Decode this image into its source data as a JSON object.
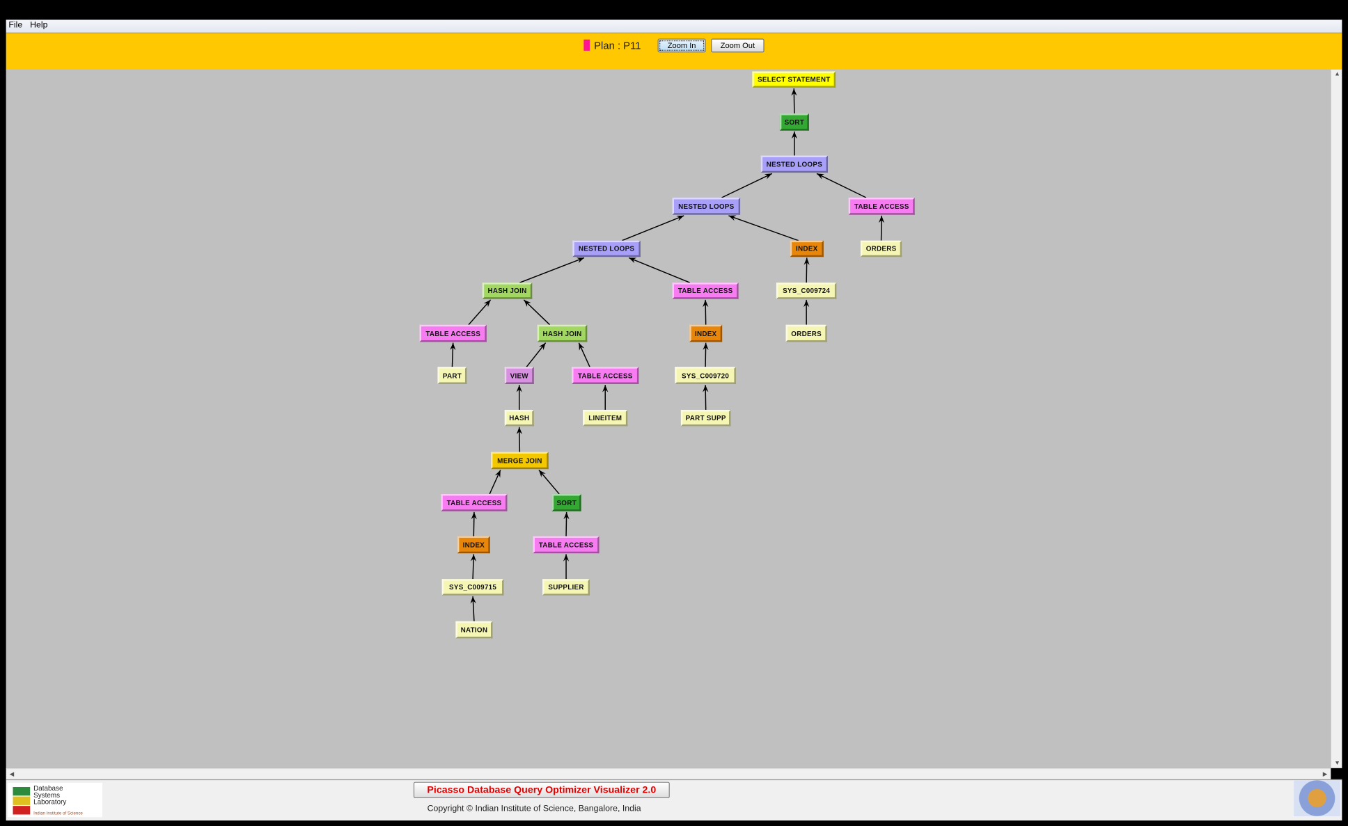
{
  "menu": {
    "items": [
      "File",
      "Help"
    ]
  },
  "toolbar": {
    "plan_label": "Plan : P11",
    "plan_color": "#ff1493",
    "zoom_in": "Zoom In",
    "zoom_out": "Zoom Out"
  },
  "colors": {
    "select": "#ffff00",
    "sort": "#33a833",
    "nested_loops": "#a8a0f8",
    "table_access": "#f77cf2",
    "index": "#e8860a",
    "object": "#f6f6b4",
    "hash_join": "#a2d862",
    "view": "#d890e0",
    "merge_join": "#f4c800"
  },
  "nodes": [
    {
      "label": "SELECT STATEMENT",
      "kind": "select",
      "parent": null
    },
    {
      "label": "SORT",
      "kind": "sort",
      "parent": 0
    },
    {
      "label": "NESTED LOOPS",
      "kind": "nested_loops",
      "parent": 1
    },
    {
      "label": "NESTED LOOPS",
      "kind": "nested_loops",
      "parent": 2
    },
    {
      "label": "TABLE ACCESS",
      "kind": "table_access",
      "parent": 2
    },
    {
      "label": "NESTED LOOPS",
      "kind": "nested_loops",
      "parent": 3
    },
    {
      "label": "INDEX",
      "kind": "index",
      "parent": 3
    },
    {
      "label": "ORDERS",
      "kind": "object",
      "parent": 4
    },
    {
      "label": "HASH JOIN",
      "kind": "hash_join",
      "parent": 5
    },
    {
      "label": "TABLE ACCESS",
      "kind": "table_access",
      "parent": 5
    },
    {
      "label": "SYS_C009724",
      "kind": "object",
      "parent": 6
    },
    {
      "label": "TABLE ACCESS",
      "kind": "table_access",
      "parent": 8
    },
    {
      "label": "HASH JOIN",
      "kind": "hash_join",
      "parent": 8
    },
    {
      "label": "INDEX",
      "kind": "index",
      "parent": 9
    },
    {
      "label": "ORDERS",
      "kind": "object",
      "parent": 10
    },
    {
      "label": "PART",
      "kind": "object",
      "parent": 11
    },
    {
      "label": "VIEW",
      "kind": "view",
      "parent": 12
    },
    {
      "label": "TABLE ACCESS",
      "kind": "table_access",
      "parent": 12
    },
    {
      "label": "SYS_C009720",
      "kind": "object",
      "parent": 13
    },
    {
      "label": "HASH",
      "kind": "object",
      "parent": 16
    },
    {
      "label": "LINEITEM",
      "kind": "object",
      "parent": 17
    },
    {
      "label": "PART SUPP",
      "kind": "object",
      "parent": 18
    },
    {
      "label": "MERGE JOIN",
      "kind": "merge_join",
      "parent": 19
    },
    {
      "label": "TABLE ACCESS",
      "kind": "table_access",
      "parent": 22
    },
    {
      "label": "SORT",
      "kind": "sort",
      "parent": 22
    },
    {
      "label": "INDEX",
      "kind": "index",
      "parent": 23
    },
    {
      "label": "TABLE ACCESS",
      "kind": "table_access",
      "parent": 24
    },
    {
      "label": "SYS_C009715",
      "kind": "object",
      "parent": 25
    },
    {
      "label": "SUPPLIER",
      "kind": "object",
      "parent": 26
    },
    {
      "label": "NATION",
      "kind": "object",
      "parent": 27
    }
  ],
  "footer": {
    "title": "Picasso Database Query Optimizer Visualizer 2.0",
    "copyright": "Copyright © Indian Institute of Science, Bangalore, India",
    "logo_text": "Database Systems Laboratory",
    "logo_subtext": "Indian Institute of Science"
  }
}
